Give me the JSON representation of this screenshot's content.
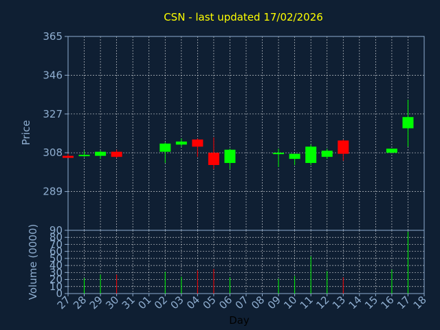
{
  "chart_data": {
    "type": "candlestick",
    "title": "CSN - last updated 17/02/2026",
    "xlabel": "Day",
    "x_ticks": [
      "27",
      "28",
      "29",
      "30",
      "31",
      "01",
      "02",
      "03",
      "04",
      "05",
      "06",
      "07",
      "08",
      "09",
      "10",
      "11",
      "12",
      "13",
      "14",
      "15",
      "16",
      "17",
      "18"
    ],
    "price_panel": {
      "ylabel": "Price",
      "ylim": [
        270,
        365
      ],
      "y_ticks": [
        289,
        308,
        327,
        346,
        365
      ],
      "grid": true
    },
    "volume_panel": {
      "ylabel": "Volume (0000)",
      "ylim": [
        0,
        90
      ],
      "y_ticks": [
        0,
        10,
        20,
        30,
        40,
        50,
        60,
        70,
        80,
        90
      ],
      "grid": true
    },
    "candles": [
      {
        "day": "27",
        "open": 306.5,
        "high": 307.5,
        "low": 305.5,
        "close": 305.5,
        "volume": 0
      },
      {
        "day": "28",
        "open": 306.5,
        "high": 309,
        "low": 306,
        "close": 307,
        "volume": 22
      },
      {
        "day": "29",
        "open": 306.5,
        "high": 309,
        "low": 305,
        "close": 308.5,
        "volume": 27
      },
      {
        "day": "30",
        "open": 308.5,
        "high": 309.5,
        "low": 305.5,
        "close": 306,
        "volume": 27
      },
      {
        "day": "02",
        "open": 308.5,
        "high": 313,
        "low": 303,
        "close": 312.5,
        "volume": 31
      },
      {
        "day": "03",
        "open": 312,
        "high": 315,
        "low": 311,
        "close": 313.5,
        "volume": 24
      },
      {
        "day": "04",
        "open": 314.5,
        "high": 315,
        "low": 306,
        "close": 311,
        "volume": 33
      },
      {
        "day": "05",
        "open": 308,
        "high": 315.5,
        "low": 300,
        "close": 302,
        "volume": 35
      },
      {
        "day": "06",
        "open": 303,
        "high": 310,
        "low": 300,
        "close": 309.5,
        "volume": 23
      },
      {
        "day": "09",
        "open": 307.5,
        "high": 310,
        "low": 301,
        "close": 308,
        "volume": 21
      },
      {
        "day": "10",
        "open": 305,
        "high": 307.5,
        "low": 302,
        "close": 307.5,
        "volume": 25
      },
      {
        "day": "11",
        "open": 303,
        "high": 312,
        "low": 302,
        "close": 311,
        "volume": 53
      },
      {
        "day": "12",
        "open": 306,
        "high": 310,
        "low": 305,
        "close": 309,
        "volume": 32
      },
      {
        "day": "13",
        "open": 314,
        "high": 314.5,
        "low": 304,
        "close": 307.5,
        "volume": 23
      },
      {
        "day": "16",
        "open": 308,
        "high": 310,
        "low": 308,
        "close": 310,
        "volume": 34
      },
      {
        "day": "17",
        "open": 320,
        "high": 334,
        "low": 311,
        "close": 325.5,
        "volume": 88
      }
    ],
    "colors": {
      "background": "#0f1f33",
      "plot_border": "#8faed0",
      "grid": "#ffffff",
      "up": "#00ff00",
      "down": "#ff0000",
      "title": "#ffff00",
      "tick_text": "#8faed0",
      "xlabel_text": "#000000"
    }
  }
}
